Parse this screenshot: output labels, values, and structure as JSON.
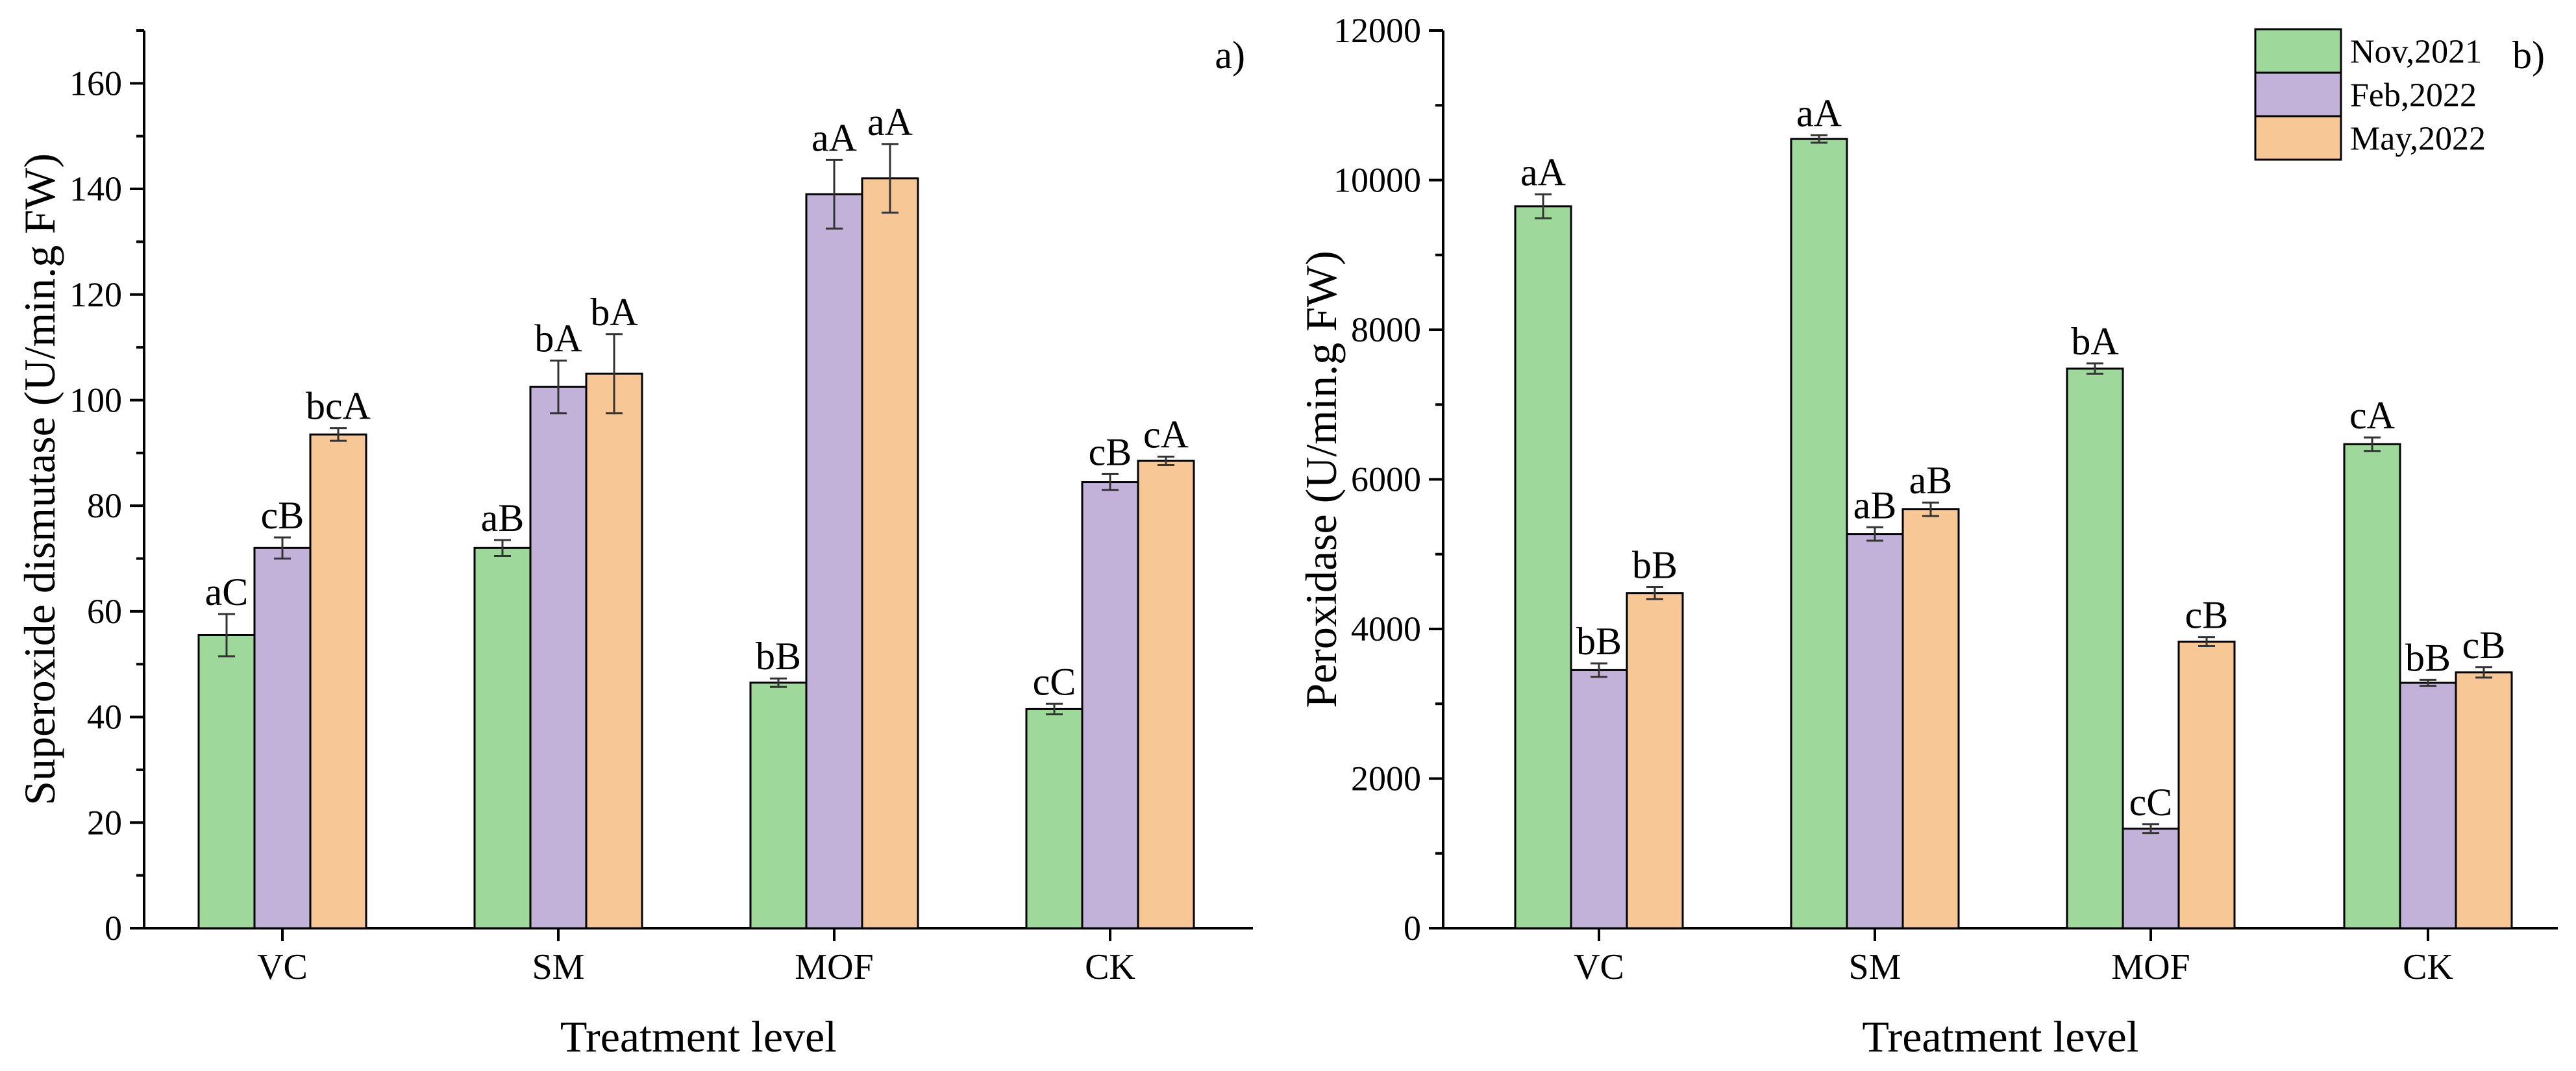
{
  "chart_data": [
    {
      "type": "bar",
      "panel_label": "a)",
      "xlabel": "Treatment level",
      "ylabel": "Superoxide dismutase (U/min.g FW)",
      "ylim": [
        0,
        170
      ],
      "yticks": [
        0,
        20,
        40,
        60,
        80,
        100,
        120,
        140,
        160
      ],
      "categories": [
        "VC",
        "SM",
        "MOF",
        "CK"
      ],
      "series": [
        {
          "name": "Nov,2021",
          "color": "#9fd89b",
          "values": [
            55.5,
            72,
            46.5,
            41.5
          ],
          "errors": [
            4,
            1.5,
            0.8,
            1
          ],
          "labels": [
            "aC",
            "aB",
            "bB",
            "cC"
          ]
        },
        {
          "name": "Feb,2022",
          "color": "#c2b2d9",
          "values": [
            72,
            102.5,
            139,
            84.5
          ],
          "errors": [
            2,
            5,
            6.5,
            1.5
          ],
          "labels": [
            "cB",
            "bA",
            "aA",
            "cB"
          ]
        },
        {
          "name": "May,2022",
          "color": "#f7c896",
          "values": [
            93.5,
            105,
            142,
            88.5
          ],
          "errors": [
            1.2,
            7.5,
            6.5,
            0.8
          ],
          "labels": [
            "bcA",
            "bA",
            "aA",
            "cA"
          ]
        }
      ]
    },
    {
      "type": "bar",
      "panel_label": "b)",
      "xlabel": "Treatment level",
      "ylabel": "Peroxidase (U/min.g FW)",
      "ylim": [
        0,
        12000
      ],
      "yticks": [
        0,
        2000,
        4000,
        6000,
        8000,
        10000,
        12000
      ],
      "categories": [
        "VC",
        "SM",
        "MOF",
        "CK"
      ],
      "series": [
        {
          "name": "Nov,2021",
          "color": "#9fd89b",
          "values": [
            9650,
            10550,
            7480,
            6470
          ],
          "errors": [
            160,
            50,
            70,
            90
          ],
          "labels": [
            "aA",
            "aA",
            "bA",
            "cA"
          ]
        },
        {
          "name": "Feb,2022",
          "color": "#c2b2d9",
          "values": [
            3450,
            5270,
            1330,
            3280
          ],
          "errors": [
            90,
            90,
            60,
            40
          ],
          "labels": [
            "bB",
            "aB",
            "cC",
            "bB"
          ]
        },
        {
          "name": "May,2022",
          "color": "#f7c896",
          "values": [
            4480,
            5600,
            3830,
            3420
          ],
          "errors": [
            80,
            90,
            60,
            70
          ],
          "labels": [
            "bB",
            "aB",
            "cB",
            "cB"
          ]
        }
      ],
      "legend": {
        "position": "top-right",
        "entries": [
          "Nov,2021",
          "Feb,2022",
          "May,2022"
        ]
      }
    }
  ]
}
